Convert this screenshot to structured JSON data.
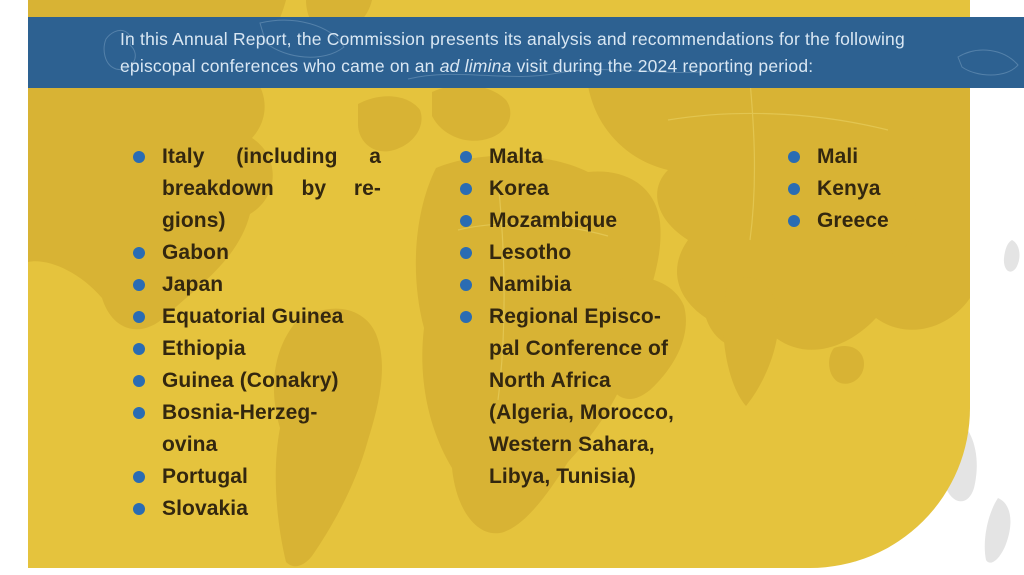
{
  "banner": {
    "line1": "In this Annual Report, the Commission presents its analysis and recommendations for the following",
    "line2_pre": "episcopal conferences who came on an ",
    "line2_italic": "ad limina",
    "line2_post": " visit during the 2024 reporting period:"
  },
  "columns": [
    {
      "items": [
        {
          "lines": [
            "Italy (including a",
            "breakdown by re-",
            "gions)"
          ],
          "justify": true
        },
        {
          "lines": [
            "Gabon"
          ]
        },
        {
          "lines": [
            "Japan"
          ]
        },
        {
          "lines": [
            "Equatorial Guinea"
          ]
        },
        {
          "lines": [
            "Ethiopia"
          ]
        },
        {
          "lines": [
            "Guinea (Conakry)"
          ]
        },
        {
          "lines": [
            "Bosnia-Herzeg-",
            "ovina"
          ]
        },
        {
          "lines": [
            "Portugal"
          ]
        },
        {
          "lines": [
            "Slovakia"
          ]
        }
      ]
    },
    {
      "items": [
        {
          "lines": [
            "Malta"
          ]
        },
        {
          "lines": [
            "Korea"
          ]
        },
        {
          "lines": [
            "Mozambique"
          ]
        },
        {
          "lines": [
            "Lesotho"
          ]
        },
        {
          "lines": [
            "Namibia"
          ]
        },
        {
          "lines": [
            "Regional Episco-",
            "pal Conference of",
            "North Africa",
            "(Algeria, Morocco,",
            "Western Sahara,",
            "Libya, Tunisia)"
          ]
        }
      ]
    },
    {
      "items": [
        {
          "lines": [
            "Mali"
          ]
        },
        {
          "lines": [
            "Kenya"
          ]
        },
        {
          "lines": [
            "Greece"
          ]
        }
      ]
    }
  ],
  "icons": {
    "bullet": "filled-circle",
    "background": "world-map-silhouette"
  },
  "colors": {
    "card_yellow": "#e5c33d",
    "map_dark_yellow": "#d8b334",
    "banner_blue": "#2d6191",
    "banner_text": "#d9e7f3",
    "bullet_blue": "#2a6cb3",
    "list_text": "#33270f",
    "map_gray": "#e4e4e4",
    "page_background": "#ffffff"
  }
}
